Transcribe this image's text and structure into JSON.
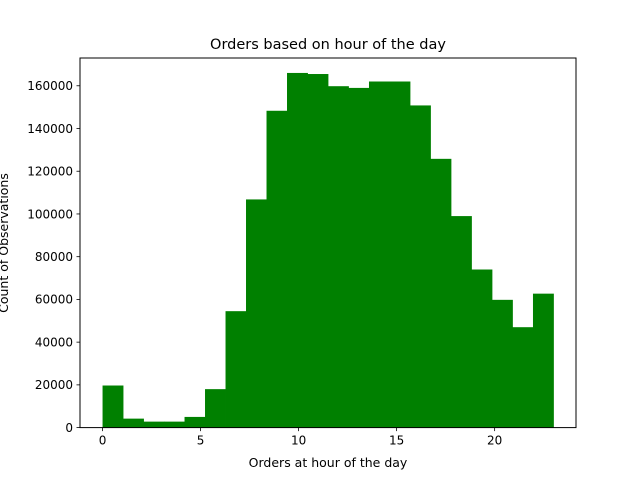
{
  "chart_data": {
    "type": "bar",
    "title": "Orders based on hour of the day",
    "xlabel": "Orders at hour of the day",
    "ylabel": "Count of Observations",
    "bar_color": "#008000",
    "bin_edges": [
      0,
      1.045,
      2.091,
      3.136,
      4.182,
      5.227,
      6.273,
      7.318,
      8.364,
      9.409,
      10.455,
      11.5,
      12.545,
      13.591,
      14.636,
      15.682,
      16.727,
      17.773,
      18.818,
      19.864,
      20.909,
      21.955,
      23
    ],
    "values": [
      19700,
      4200,
      2800,
      2800,
      5000,
      18000,
      54500,
      106800,
      148300,
      166000,
      165500,
      159800,
      159000,
      162000,
      162000,
      150800,
      125800,
      99000,
      74000,
      59800,
      47000,
      62700
    ],
    "xlim": [
      -1.15,
      24.15
    ],
    "ylim": [
      0,
      173000
    ],
    "x_ticks": [
      0,
      5,
      10,
      15,
      20
    ],
    "y_ticks": [
      0,
      20000,
      40000,
      60000,
      80000,
      100000,
      120000,
      140000,
      160000
    ],
    "grid": false,
    "legend": "none"
  }
}
